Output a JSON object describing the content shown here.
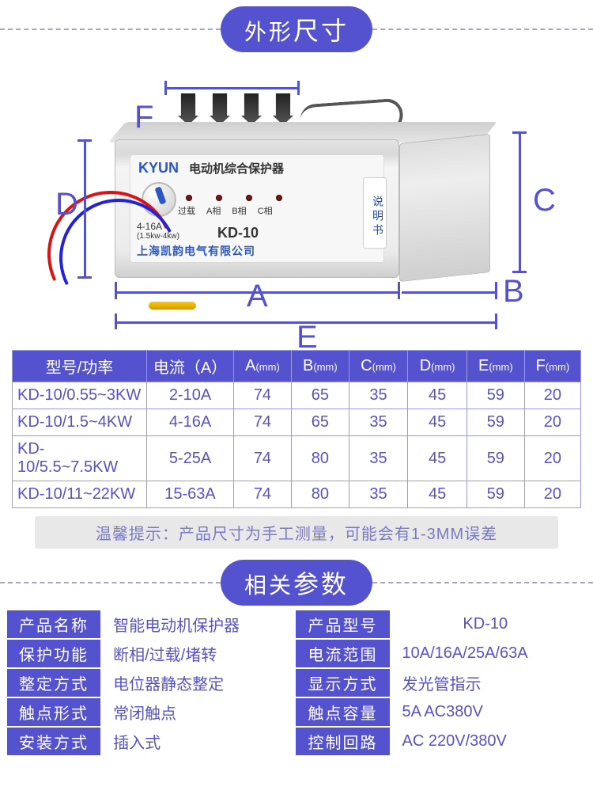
{
  "colors": {
    "accent": "#5552cf",
    "dash": "#a3a1e4",
    "border": "#9b99e0",
    "text_value": "#5552cf",
    "tip_bg": "#e8e8e8",
    "tip_fg": "#7a78c9",
    "logo_blue": "#2a57c5"
  },
  "section1_title_a": "外形",
  "section1_title_b": "尺寸",
  "section2_title_a": "相关",
  "section2_title_b": "参数",
  "figure": {
    "labels": {
      "A": "A",
      "B": "B",
      "C": "C",
      "D": "D",
      "E": "E",
      "F": "F"
    },
    "device": {
      "logo": "KYUN",
      "desc": "电动机综合保护器",
      "led_labels": [
        "过载",
        "A相",
        "B相",
        "C相"
      ],
      "range_top": "4-16A",
      "range_bottom": "(1.5kw-4kw)",
      "model": "KD-10",
      "company": "上海凯韵电气有限公司",
      "manual": "说明书"
    }
  },
  "dim_table": {
    "headers": {
      "model": "型号/功率",
      "current": "电流（A）",
      "A": "A",
      "B": "B",
      "C": "C",
      "D": "D",
      "E": "E",
      "F": "F",
      "unit": "(mm)"
    },
    "rows": [
      {
        "model": "KD-10/0.55~3KW",
        "current": "2-10A",
        "A": "74",
        "B": "65",
        "C": "35",
        "D": "45",
        "E": "59",
        "F": "20"
      },
      {
        "model": "KD-10/1.5~4KW",
        "current": "4-16A",
        "A": "74",
        "B": "65",
        "C": "35",
        "D": "45",
        "E": "59",
        "F": "20"
      },
      {
        "model": "KD-10/5.5~7.5KW",
        "current": "5-25A",
        "A": "74",
        "B": "80",
        "C": "35",
        "D": "45",
        "E": "59",
        "F": "20"
      },
      {
        "model": "KD-10/11~22KW",
        "current": "15-63A",
        "A": "74",
        "B": "80",
        "C": "35",
        "D": "45",
        "E": "59",
        "F": "20"
      }
    ]
  },
  "tip": "温馨提示：产品尺寸为手工测量，可能会有1-3MM误差",
  "params": {
    "rows": [
      {
        "k1": "产品名称",
        "v1": "智能电动机保护器",
        "k2": "产品型号",
        "v2": "KD-10"
      },
      {
        "k1": "保护功能",
        "v1": "断相/过载/堵转",
        "k2": "电流范围",
        "v2": "10A/16A/25A/63A"
      },
      {
        "k1": "整定方式",
        "v1": "电位器静态整定",
        "k2": "显示方式",
        "v2": "发光管指示"
      },
      {
        "k1": "触点形式",
        "v1": "常闭触点",
        "k2": "触点容量",
        "v2": "5A AC380V"
      },
      {
        "k1": "安装方式",
        "v1": "插入式",
        "k2": "控制回路",
        "v2": "AC 220V/380V"
      }
    ]
  }
}
